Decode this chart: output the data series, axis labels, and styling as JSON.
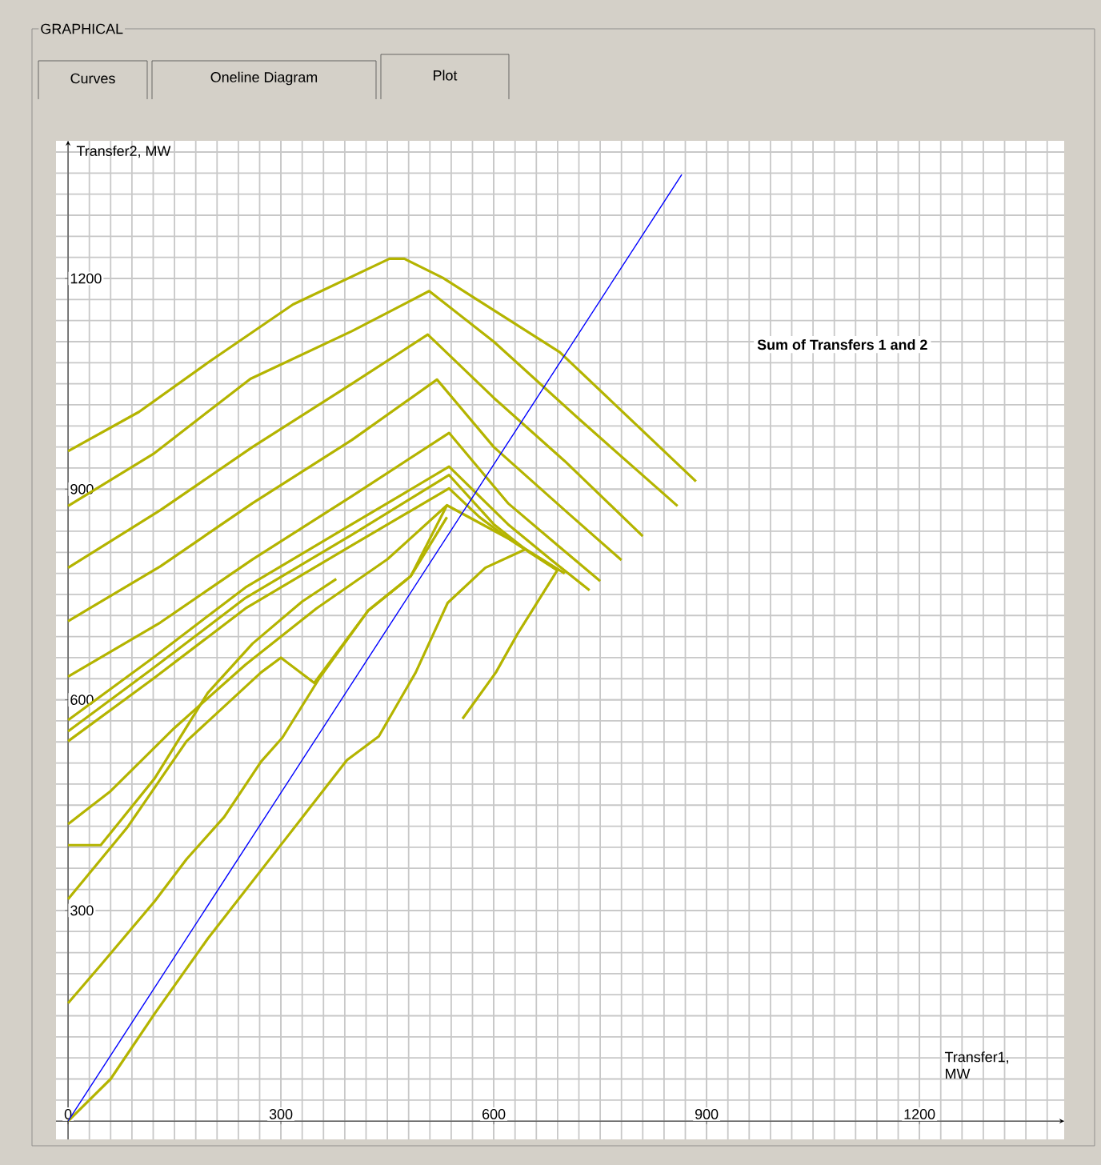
{
  "chart_data": {
    "type": "line",
    "xlabel": "Transfer1, MW",
    "ylabel": "Transfer2, MW",
    "annotations": [
      "GRAPHICAL",
      "Curves",
      "Oneline Diagram",
      "Plot",
      "Sum of Transfers 1 and 2"
    ],
    "xlim": [
      -17,
      1404
    ],
    "ylim": [
      -26,
      1396
    ],
    "xticks": [
      0,
      300,
      600,
      900,
      1200
    ],
    "yticks": [
      300,
      600,
      900,
      1200
    ],
    "grid": true,
    "series": [
      {
        "color": "#b4b400",
        "x": [
          0,
          100,
          197,
          317,
          453,
          474,
          528,
          693,
          885
        ],
        "values": [
          954,
          1010,
          1080,
          1163,
          1228,
          1228,
          1201,
          1095,
          911
        ]
      },
      {
        "color": "#b4b400",
        "x": [
          0,
          120,
          257,
          400,
          509,
          600,
          720,
          859
        ],
        "values": [
          876,
          950,
          1057,
          1125,
          1182,
          1110,
          1000,
          876
        ]
      },
      {
        "color": "#b4b400",
        "x": [
          0,
          130,
          260,
          400,
          507,
          600,
          700,
          810
        ],
        "values": [
          788,
          870,
          960,
          1050,
          1120,
          1030,
          940,
          833
        ]
      },
      {
        "color": "#b4b400",
        "x": [
          0,
          130,
          260,
          400,
          520,
          600,
          700,
          780
        ],
        "values": [
          712,
          790,
          880,
          970,
          1056,
          960,
          870,
          799
        ]
      },
      {
        "color": "#b4b400",
        "x": [
          0,
          130,
          260,
          400,
          537,
          620,
          690,
          750
        ],
        "values": [
          633,
          710,
          800,
          890,
          980,
          880,
          820,
          769
        ]
      },
      {
        "color": "#b4b400",
        "x": [
          0,
          120,
          250,
          400,
          537,
          620,
          680,
          735
        ],
        "values": [
          571,
          660,
          760,
          850,
          932,
          850,
          800,
          756
        ]
      },
      {
        "color": "#b4b400",
        "x": [
          0,
          120,
          250,
          400,
          537,
          600,
          650,
          690
        ],
        "values": [
          555,
          645,
          745,
          835,
          920,
          850,
          810,
          784
        ]
      },
      {
        "color": "#b4b400",
        "x": [
          0,
          120,
          250,
          400,
          537,
          580,
          620,
          644
        ],
        "values": [
          541,
          630,
          730,
          820,
          901,
          860,
          830,
          814
        ]
      },
      {
        "color": "#b4b400",
        "x": [
          0,
          60,
          150,
          250,
          350,
          450,
          534,
          620,
          700
        ],
        "values": [
          423,
          470,
          560,
          650,
          730,
          800,
          877,
          830,
          780
        ]
      },
      {
        "color": "#b4b400",
        "x": [
          0,
          46,
          122,
          197,
          260,
          330,
          378
        ],
        "values": [
          393,
          393,
          488,
          610,
          680,
          740,
          772
        ]
      },
      {
        "color": "#b4b400",
        "x": [
          0,
          84,
          167,
          272,
          300,
          347,
          423,
          483,
          534
        ],
        "values": [
          316,
          419,
          541,
          639,
          660,
          624,
          727,
          776,
          860
        ]
      },
      {
        "color": "#b4b400",
        "x": [
          0,
          46,
          122,
          167,
          220,
          272,
          302,
          355,
          423,
          483,
          534
        ],
        "values": [
          168,
          222,
          313,
          373,
          433,
          512,
          546,
          632,
          727,
          776,
          877
        ]
      },
      {
        "color": "#b4b400",
        "x": [
          0,
          60,
          122,
          197,
          302,
          393,
          438,
          490,
          535,
          588,
          644
        ],
        "values": [
          0,
          60,
          153,
          260,
          396,
          514,
          548,
          639,
          738,
          788,
          814
        ]
      },
      {
        "color": "#b4b400",
        "x": [
          556,
          603,
          633,
          690
        ],
        "values": [
          573,
          639,
          693,
          785
        ]
      },
      {
        "color": "#0000ff",
        "x": [
          0,
          865
        ],
        "values": [
          0,
          1348
        ]
      }
    ]
  }
}
